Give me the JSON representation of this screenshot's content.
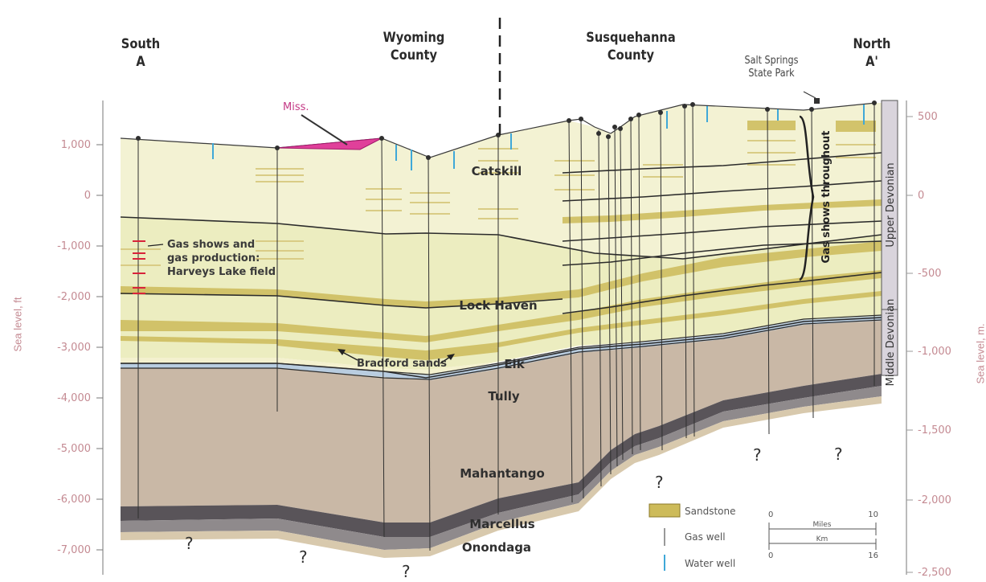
{
  "header": {
    "south_dir": "South",
    "south_point": "A",
    "wyoming_line1": "Wyoming",
    "wyoming_line2": "County",
    "susq_line1": "Susquehanna",
    "susq_line2": "County",
    "north_dir": "North",
    "north_point": "A'",
    "park_line1": "Salt Springs",
    "park_line2": "State Park"
  },
  "axes": {
    "left_title": "Sea level, ft",
    "right_title": "Sea level, m.",
    "left_ticks": [
      "1,000",
      "0",
      "-1,000",
      "-2,000",
      "-3,000",
      "-4,000",
      "-5,000",
      "-6,000",
      "-7,000"
    ],
    "right_ticks": [
      "500",
      "0",
      "-500",
      "-1,000",
      "-1,500",
      "-2,000",
      "-2,500"
    ]
  },
  "units": {
    "catskill": "Catskill",
    "lock_haven": "Lock Haven",
    "elk": "Elk",
    "tully": "Tully",
    "mahantango": "Mahantango",
    "marcellus": "Marcellus",
    "onondaga": "Onondaga",
    "miss": "Miss.",
    "bradford": "Bradford sands"
  },
  "annotations": {
    "gas_shows_line1": "Gas shows and",
    "gas_shows_line2": "gas production:",
    "gas_shows_line3": "Harveys Lake field",
    "gas_throughout": "Gas shows throughout",
    "unknown_mark": "?"
  },
  "age_bar": {
    "upper": "Upper Devonian",
    "middle": "Middle Devonian"
  },
  "legend": {
    "sandstone": "Sandstone",
    "gas_well": "Gas well",
    "water_well": "Water well",
    "miles_label": "Miles",
    "km_label": "Km",
    "miles_start": "0",
    "miles_end": "10",
    "km_start": "0",
    "km_end": "16"
  },
  "colors": {
    "catskill": "#f3f2d3",
    "lock_haven": "#ecedc0",
    "sandstone": "#cdbb5a",
    "mahantango": "#c9b8a6",
    "marcellus": "#595459",
    "onondaga": "#8f8a8c",
    "tully": "#b9cde0",
    "miss": "#e0409a",
    "water_well": "#3fa8d8",
    "axis": "#c48a92"
  }
}
